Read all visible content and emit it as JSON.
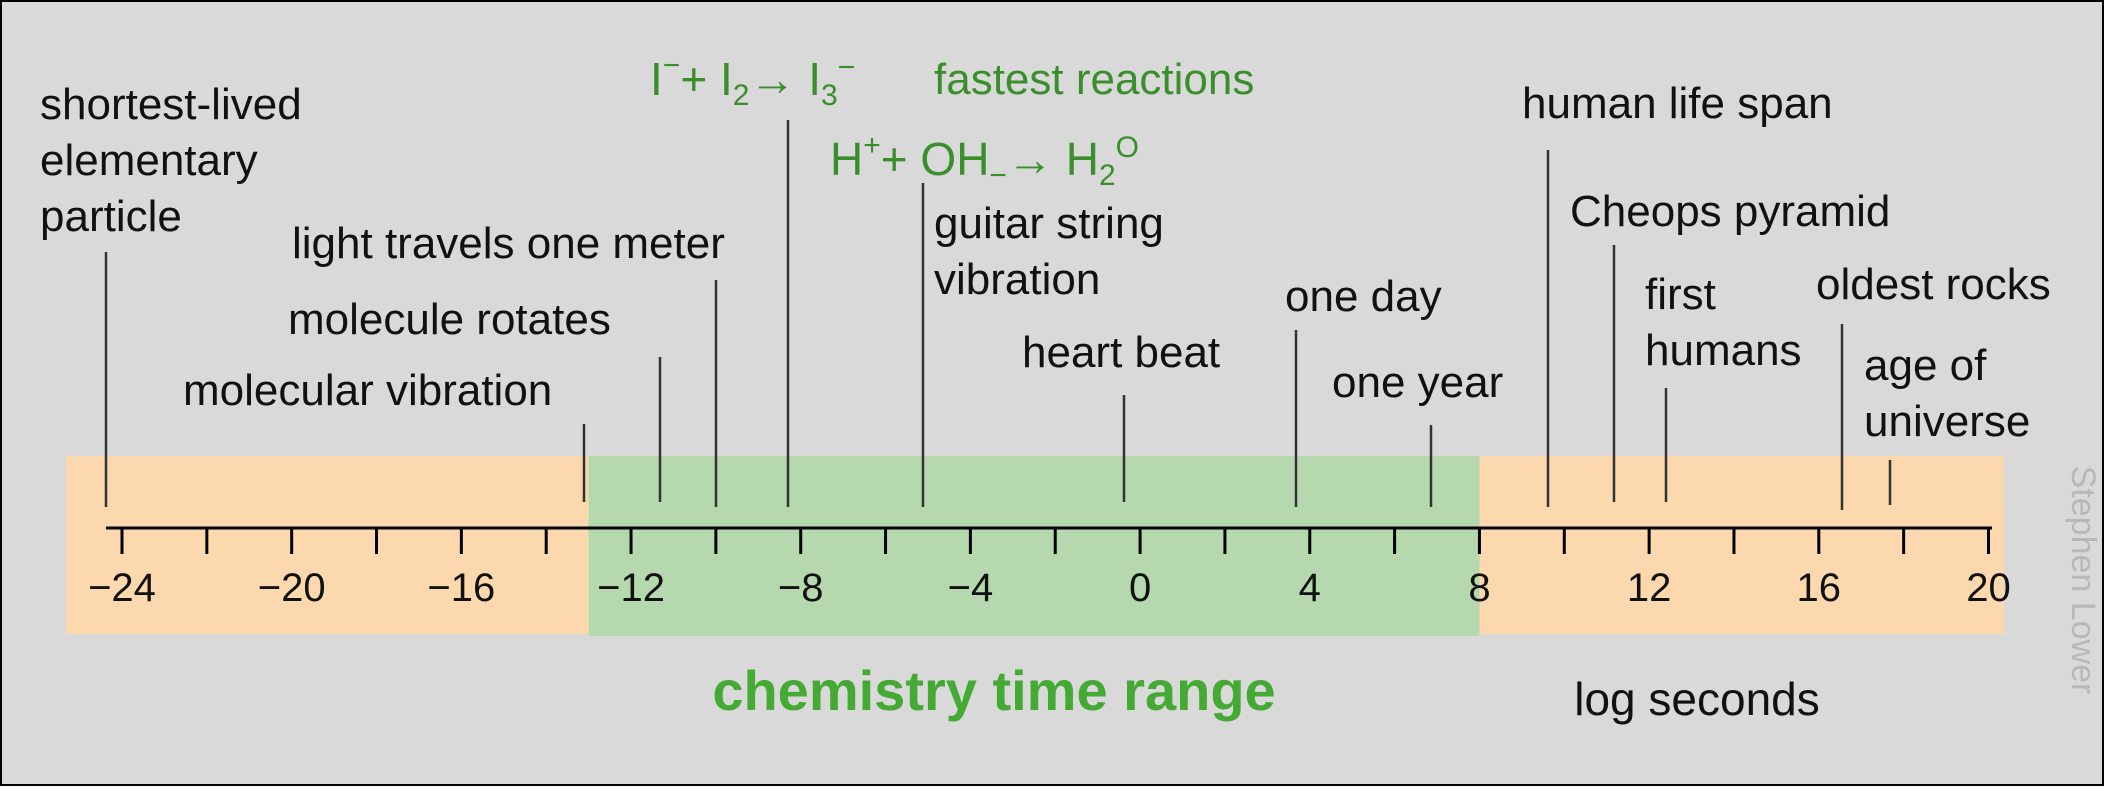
{
  "axis": {
    "ticks": [
      "−24",
      "−20",
      "−16",
      "−12",
      "−8",
      "−4",
      "0",
      "4",
      "8",
      "12",
      "16",
      "20"
    ],
    "label": "log seconds",
    "min": -24,
    "max": 20
  },
  "chemistry_range": {
    "label": "chemistry time range",
    "from": -13,
    "to": 8
  },
  "events": [
    {
      "lines": [
        "shortest-lived",
        "elementary",
        "particle"
      ],
      "value": -22.8
    },
    {
      "lines": [
        "molecular vibration"
      ],
      "value": -13
    },
    {
      "lines": [
        "molecule rotates"
      ],
      "value": -11.1
    },
    {
      "lines": [
        "light travels one meter"
      ],
      "value": -9.7
    },
    {
      "lines": [
        "fastest reactions"
      ],
      "value": -8
    },
    {
      "lines": [
        "guitar string",
        "vibration"
      ],
      "value": -3.1
    },
    {
      "lines": [
        "heart beat"
      ],
      "value": 0
    },
    {
      "lines": [
        "one day"
      ],
      "value": 4.1
    },
    {
      "lines": [
        "one year"
      ],
      "value": 7.3
    },
    {
      "lines": [
        "human life span"
      ],
      "value": 10
    },
    {
      "lines": [
        "Cheops pyramid"
      ],
      "value": 11.6
    },
    {
      "lines": [
        "first",
        "humans"
      ],
      "value": 12.8
    },
    {
      "lines": [
        "oldest rocks"
      ],
      "value": 17
    },
    {
      "lines": [
        "age of",
        "universe"
      ],
      "value": 18.1
    }
  ],
  "reactions": [
    {
      "id": "iodide",
      "parts": [
        "I",
        "−",
        "+ I",
        "2",
        "→ I",
        "3",
        "−"
      ],
      "value": -8
    },
    {
      "id": "water",
      "parts": [
        "H",
        "+",
        "+ OH",
        "−",
        "→ H",
        "2",
        "O"
      ],
      "value": -4.8
    }
  ],
  "credit": "Stephen Lower",
  "colors": {
    "background": "#d9d9d9",
    "timeline_band": "#fbd8ad",
    "chemistry_band": "#b5d8af",
    "chemistry_label": "#44aa33",
    "reaction_text": "#3a8f2c",
    "text": "#111111",
    "credit": "#b8b8b8"
  }
}
